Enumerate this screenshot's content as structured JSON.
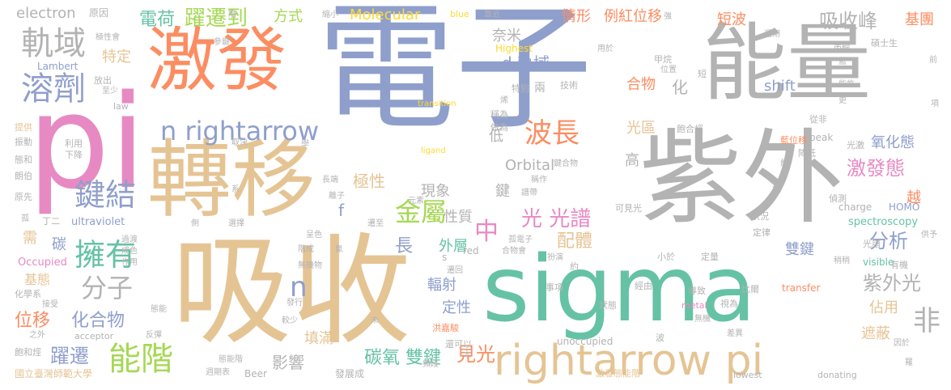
{
  "palette": {
    "periwinkle": "#8f9fcc",
    "teal": "#66c2a5",
    "tan": "#e5c494",
    "salmon": "#fc8d62",
    "pink": "#e78ac3",
    "lime": "#a6d854",
    "yellow": "#ffd92f",
    "gray": "#b3b3b3"
  },
  "words": {
    "w001": "電子",
    "w002": "sigma",
    "w003": "吸收",
    "w004": "能量",
    "w005": "紫外",
    "w006": "激發",
    "w007": "轉移",
    "w008": "pi",
    "w009": "rightarrow pi",
    "w010": "n rightarrow",
    "w011": "波長",
    "w012": "溶劑",
    "w013": "軌域",
    "w014": "鍵結",
    "w015": "擁有",
    "w016": "能階",
    "w017": "分子",
    "w018": "n",
    "w019": "金屬",
    "w020": "中",
    "w021": "光 光譜",
    "w022": "躍遷到",
    "w023": "電荷",
    "w024": "吸收峰",
    "w025": "情形",
    "w026": "例紅位移",
    "w027": "短波",
    "w028": "基團",
    "w029": "方式",
    "w030": "Molecular",
    "w031": "electron",
    "w032": "原因",
    "w033": "奈米",
    "w034": "d 軌域",
    "w035": "合物",
    "w036": "化",
    "w037": "特定",
    "w038": "光區",
    "w039": "激發態",
    "w040": "氧化態",
    "w041": "越",
    "w042": "shift",
    "w043": "分析",
    "w044": "非",
    "w045": "紫外光",
    "w046": "佔用",
    "w047": "遮蔽",
    "w048": "雙鍵",
    "w049": "見光",
    "w050": "碳氧 雙鍵",
    "w051": "影響",
    "w052": "填滿",
    "w053": "定性",
    "w054": "輻射",
    "w055": "外層",
    "w056": "長",
    "w057": "配體",
    "w058": "位移",
    "w059": "化合物",
    "w060": "躍遷",
    "w061": "碳",
    "w062": "需",
    "w063": "基態",
    "w064": "極性",
    "w065": "現象",
    "w066": "性質",
    "w067": "鍵",
    "w068": "f",
    "w069": "高",
    "w070": "低",
    "w071": "Orbital",
    "w072": "ultraviolet",
    "w073": "spectroscopy",
    "w074": "HOMO",
    "w075": "visible",
    "w076": "Occupied",
    "w077": "Lambert",
    "w078": "Highest",
    "w079": "transition",
    "w080": "ligand",
    "w081": "peak",
    "w082": "charge",
    "w083": "transfer",
    "w084": "metal",
    "w085": "acceptor",
    "w086": "Beer",
    "w087": "lowest",
    "w088": "unoccupied",
    "w089": "donating",
    "w090": "red",
    "w091": "law",
    "w092": "blue",
    "w093": "國立臺灣師範大學",
    "w094": "激發態能階",
    "w095": "發展成",
    "w096": "洪嘉駿",
    "w097": "碩士生",
    "w098": "飽和烴",
    "w099": "化學系",
    "w100": "利用",
    "w101": "下降",
    "w102": "提供",
    "w103": "振動",
    "w104": "態和",
    "w105": "朗伯",
    "w106": "原先",
    "w107": "丁二",
    "w108": "過渡",
    "w109": "成色",
    "w110": "作用",
    "w111": "無機物",
    "w112": "放出",
    "w113": "至少",
    "w114": "參鍵",
    "w115": "極性會",
    "w116": "縮小",
    "w117": "靠近",
    "w118": "用於",
    "w119": "甲烷",
    "w120": "位置",
    "w121": "短",
    "w122": "特別",
    "w123": "技術",
    "w124": "稱為",
    "w125": "做為",
    "w126": "飽合烴",
    "w127": "從非",
    "w128": "光激",
    "w129": "降低",
    "w130": "藍位移",
    "w131": "紅",
    "w132": "端",
    "w133": "偵測",
    "w134": "狀況",
    "w135": "可見光",
    "w136": "定律",
    "w137": "光譜",
    "w138": "定量",
    "w139": "稍稍",
    "w140": "有機",
    "w141": "小於",
    "w142": "約",
    "w143": "經由",
    "w144": "導致",
    "w145": "視為",
    "w146": "比爾",
    "w147": "無機",
    "w148": "差異",
    "w149": "因於",
    "w150": "羅",
    "w151": "事項",
    "w152": "狀態",
    "w153": "波",
    "w154": "還可以",
    "w155": "頻段",
    "w156": "太",
    "w157": "未",
    "w158": "較少",
    "w159": "發行",
    "w160": "態能",
    "w161": "態能階",
    "w162": "週期表",
    "w163": "反彈",
    "w164": "之外",
    "w165": "接受",
    "w166": "呈色",
    "w167": "階成",
    "w168": "選擇",
    "w169": "氰",
    "w170": "遷至",
    "w171": "元素",
    "w172": "離子",
    "w173": "譜帶",
    "w174": "稱作",
    "w175": "鍵合物",
    "w176": "長端",
    "w177": "孤電子",
    "w178": "合物會",
    "w179": "扮演",
    "w180": "遷回",
    "w181": "取決",
    "w182": "學",
    "w183": "系",
    "w184": "兩",
    "w185": "烯",
    "w186": "週期",
    "w187": "強",
    "w188": "丙酮",
    "w189": "藍",
    "w190": "些許",
    "w191": "更",
    "w192": "項",
    "w193": "前",
    "w194": "s",
    "w195": "孤",
    "w196": "階",
    "w197": "供予",
    "w198": "側"
  }
}
